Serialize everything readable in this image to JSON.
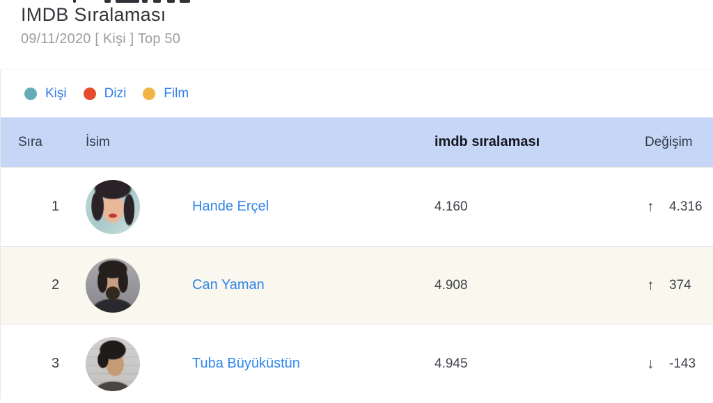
{
  "page": {
    "title": "IMDB Sıralaması",
    "subtitle": "09/11/2020 [ Kişi ] Top 50"
  },
  "legend": {
    "items": [
      {
        "id": "kisi",
        "label": "Kişi",
        "color": "#64acb8"
      },
      {
        "id": "dizi",
        "label": "Dizi",
        "color": "#e74b2c"
      },
      {
        "id": "film",
        "label": "Film",
        "color": "#f0b544"
      }
    ]
  },
  "table": {
    "columns": {
      "rank": "Sıra",
      "name": "İsim",
      "score": "imdb sıralaması",
      "change": "Değişim"
    },
    "rows": [
      {
        "rank": "1",
        "name": "Hande Erçel",
        "score": "4.160",
        "direction": "up",
        "change": "4.316"
      },
      {
        "rank": "2",
        "name": "Can Yaman",
        "score": "4.908",
        "direction": "up",
        "change": "374"
      },
      {
        "rank": "3",
        "name": "Tuba Büyüküstün",
        "score": "4.945",
        "direction": "down",
        "change": "-143"
      }
    ]
  },
  "icons": {
    "up": "↑",
    "down": "↓"
  },
  "colors": {
    "header_bg": "#c6d6f7",
    "alt_row_bg": "#faf7ee",
    "link_blue": "#2f86ea",
    "legend_kisi": "#64acb8",
    "legend_dizi": "#e74b2c",
    "legend_film": "#f0b544"
  }
}
